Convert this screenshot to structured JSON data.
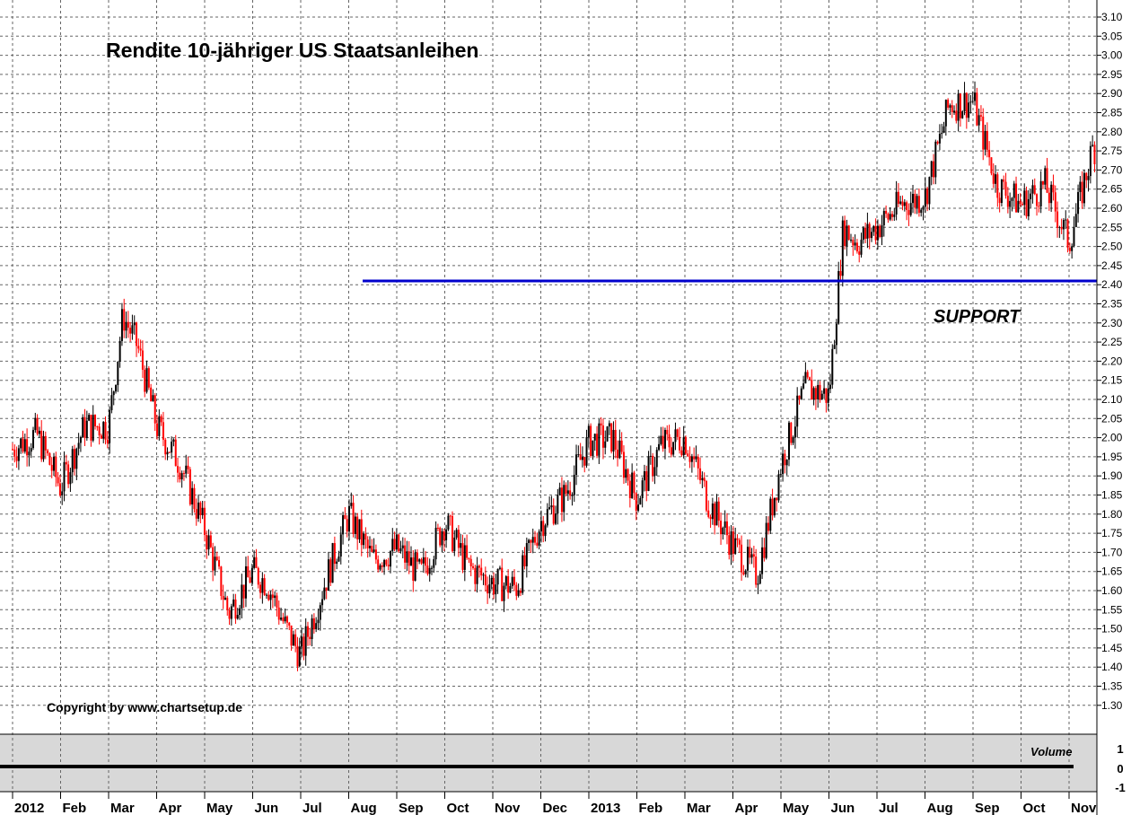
{
  "chart_data": {
    "type": "candlestick",
    "title": "Rendite 10-jähriger US Staatsanleihen",
    "copyright": "Copyright by www.chartsetup.de",
    "annotation": "SUPPORT",
    "support_level": 2.41,
    "y_axis": {
      "ylim": [
        1.25,
        3.12
      ],
      "ticks": [
        "3.10",
        "3.05",
        "3.00",
        "2.95",
        "2.90",
        "2.85",
        "2.80",
        "2.75",
        "2.70",
        "2.65",
        "2.60",
        "2.55",
        "2.50",
        "2.45",
        "2.40",
        "2.35",
        "2.30",
        "2.25",
        "2.20",
        "2.15",
        "2.10",
        "2.05",
        "2.00",
        "1.95",
        "1.90",
        "1.85",
        "1.80",
        "1.75",
        "1.70",
        "1.65",
        "1.60",
        "1.55",
        "1.50",
        "1.45",
        "1.40",
        "1.35",
        "1.30"
      ],
      "grid": true,
      "side": "right"
    },
    "x_axis": {
      "ticks": [
        "2012",
        "Feb",
        "Mar",
        "Apr",
        "May",
        "Jun",
        "Jul",
        "Aug",
        "Sep",
        "Oct",
        "Nov",
        "Dec",
        "2013",
        "Feb",
        "Mar",
        "Apr",
        "May",
        "Jun",
        "Jul",
        "Aug",
        "Sep",
        "Oct",
        "Nov"
      ],
      "tick_positions": [
        0,
        1,
        2,
        3,
        4,
        5,
        6,
        7,
        8,
        9,
        10,
        11,
        12,
        13,
        14,
        15,
        16,
        17,
        18,
        19,
        20,
        21,
        22
      ],
      "grid": true
    },
    "volume_panel": {
      "label": "Volume",
      "ticks": [
        "1",
        "0",
        "-1"
      ],
      "value": 0
    },
    "series": [
      {
        "x": [
          0,
          0.5,
          1,
          1.5,
          2,
          2.3,
          2.6,
          3,
          3.5,
          4,
          4.5,
          5,
          5.3,
          5.7,
          6,
          6.5,
          7,
          7.5,
          8,
          8.5,
          9,
          9.5,
          10,
          10.5,
          11,
          11.5,
          12,
          12.5,
          13,
          13.5,
          14,
          14.5,
          15,
          15.5,
          16,
          16.5,
          17,
          17.3,
          17.6,
          18,
          18.5,
          19,
          19.5,
          20,
          20.5,
          21,
          21.5,
          22,
          22.5
        ],
        "close": [
          1.97,
          2.01,
          1.87,
          2.03,
          2.03,
          2.32,
          2.24,
          2.03,
          1.93,
          1.76,
          1.54,
          1.65,
          1.62,
          1.5,
          1.43,
          1.62,
          1.8,
          1.68,
          1.71,
          1.64,
          1.78,
          1.66,
          1.62,
          1.61,
          1.78,
          1.85,
          1.99,
          2.0,
          1.84,
          1.98,
          2.0,
          1.83,
          1.72,
          1.64,
          1.93,
          2.13,
          2.11,
          2.55,
          2.51,
          2.55,
          2.61,
          2.63,
          2.87,
          2.88,
          2.66,
          2.61,
          2.66,
          2.51,
          2.76
        ],
        "up_color": "#000000",
        "down_color": "#ff0000"
      }
    ]
  },
  "colors": {
    "support_line": "#0000cc",
    "up": "#000000",
    "down": "#ff0000",
    "volume_panel_bg": "#d8d8d8"
  }
}
